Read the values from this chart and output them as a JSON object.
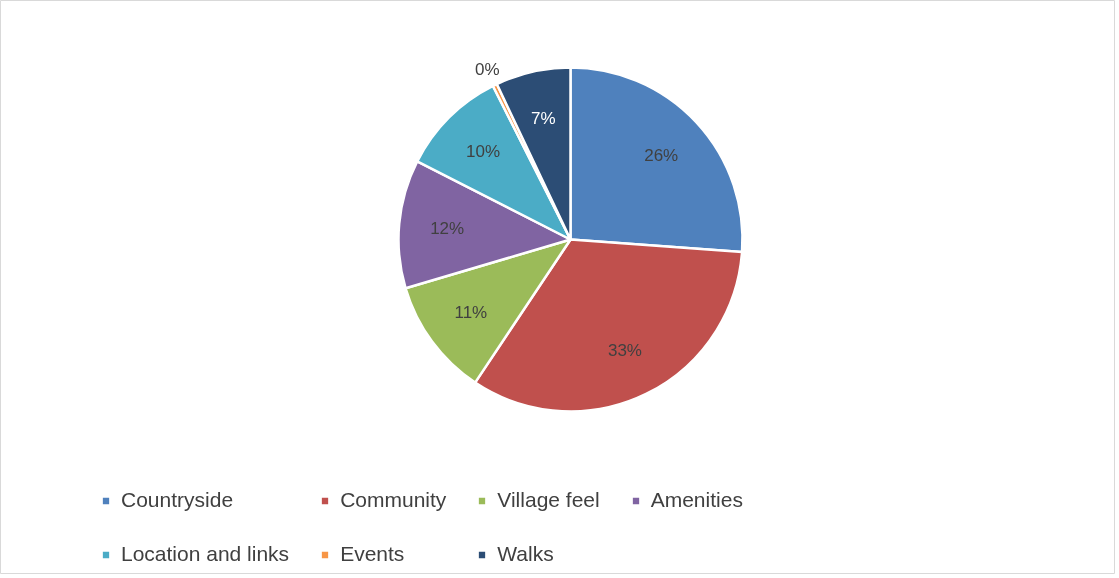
{
  "chart_data": {
    "type": "pie",
    "categories": [
      "Countryside",
      "Community",
      "Village feel",
      "Amenities",
      "Location and links",
      "Events",
      "Walks"
    ],
    "values": [
      26,
      33,
      11,
      12,
      10,
      0.4,
      7
    ],
    "value_labels": [
      "26%",
      "33%",
      "11%",
      "12%",
      "10%",
      "0%",
      "7%"
    ],
    "colors": [
      "#4f81bd",
      "#c0504d",
      "#9bbb59",
      "#8064a2",
      "#4bacc6",
      "#f79646",
      "#2c4d75"
    ],
    "legend": "bottom"
  }
}
